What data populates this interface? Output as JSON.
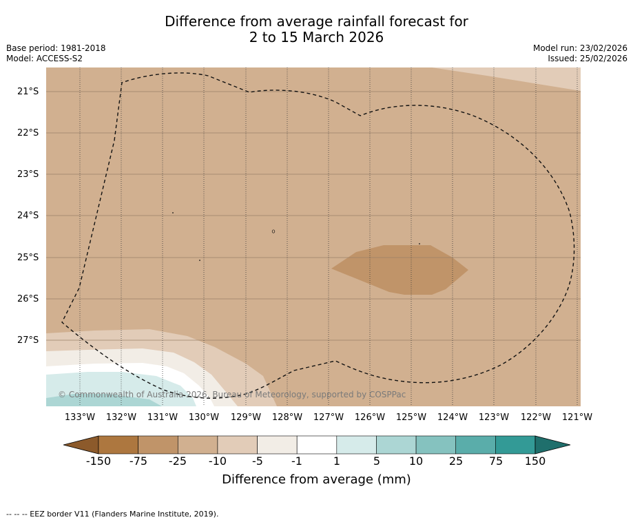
{
  "title": {
    "line1": "Difference from average rainfall forecast for",
    "line2": "2 to 15 March 2026"
  },
  "meta": {
    "base_period": "Base period: 1981-2018",
    "model": "Model: ACCESS-S2",
    "model_run": "Model run: 23/02/2026",
    "issued": "Issued: 25/02/2026"
  },
  "map": {
    "latitudes": [
      "21°S",
      "22°S",
      "23°S",
      "24°S",
      "25°S",
      "26°S",
      "27°S"
    ],
    "longitudes": [
      "133°W",
      "132°W",
      "131°W",
      "130°W",
      "129°W",
      "128°W",
      "127°W",
      "126°W",
      "125°W",
      "124°W",
      "123°W",
      "122°W",
      "121°W"
    ],
    "copyright": "© Commonwealth of Australia 2026, Bureau of Meteorology, supported by COSPPac"
  },
  "colorbar": {
    "ticks": [
      "-150",
      "-75",
      "-25",
      "-10",
      "-5",
      "-1",
      "1",
      "5",
      "10",
      "25",
      "75",
      "150"
    ],
    "colors": {
      "under": "#8c5a2b",
      "bins": [
        "#ad773f",
        "#c09469",
        "#d1b090",
        "#e2ccb8",
        "#f2ede6",
        "#ffffff",
        "#d6ebea",
        "#acd6d4",
        "#85c2bf",
        "#5aadaa",
        "#339a96"
      ],
      "over": "#1f6f6c"
    },
    "label": "Difference from average (mm)"
  },
  "footnote": "--  --  -- EEZ border V11 (Flanders Marine Institute, 2019)."
}
